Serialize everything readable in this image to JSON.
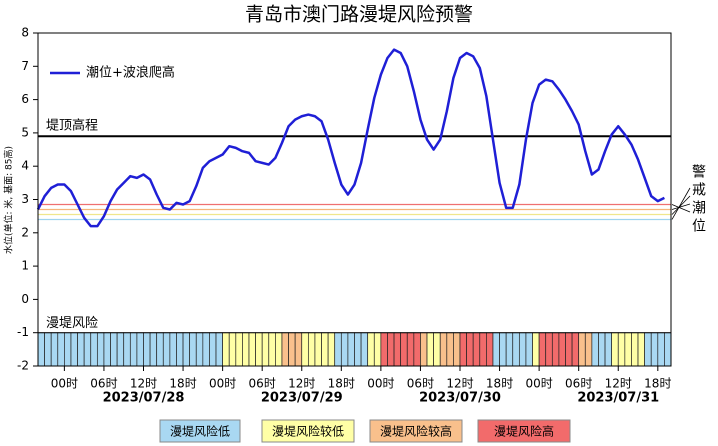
{
  "chart_data": {
    "type": "line",
    "title": "青岛市澳门路漫堤风险预警",
    "y_label": "水位(单位: 米, 基面: 85高)",
    "xlim": [
      -4,
      92
    ],
    "xticks": [
      {
        "value": 0,
        "label": "00时"
      },
      {
        "value": 6,
        "label": "06时"
      },
      {
        "value": 12,
        "label": "12时"
      },
      {
        "value": 18,
        "label": "18时"
      },
      {
        "value": 24,
        "label": "00时"
      },
      {
        "value": 30,
        "label": "06时"
      },
      {
        "value": 36,
        "label": "12时"
      },
      {
        "value": 42,
        "label": "18时"
      },
      {
        "value": 48,
        "label": "00时"
      },
      {
        "value": 54,
        "label": "06时"
      },
      {
        "value": 60,
        "label": "12时"
      },
      {
        "value": 66,
        "label": "18时"
      },
      {
        "value": 72,
        "label": "00时"
      },
      {
        "value": 78,
        "label": "06时"
      },
      {
        "value": 84,
        "label": "12时"
      },
      {
        "value": 90,
        "label": "18时"
      }
    ],
    "date_ticks": [
      {
        "value": 12,
        "label": "2023/07/28"
      },
      {
        "value": 36,
        "label": "2023/07/29"
      },
      {
        "value": 60,
        "label": "2023/07/30"
      },
      {
        "value": 84,
        "label": "2023/07/31"
      }
    ],
    "ylim": [
      -2,
      8
    ],
    "yticks": [
      -2,
      -1,
      0,
      1,
      2,
      3,
      4,
      5,
      6,
      7,
      8
    ],
    "x": [
      -4,
      -3,
      -2,
      -1,
      0,
      1,
      2,
      3,
      4,
      5,
      6,
      7,
      8,
      9,
      10,
      11,
      12,
      13,
      14,
      15,
      16,
      17,
      18,
      19,
      20,
      21,
      22,
      23,
      24,
      25,
      26,
      27,
      28,
      29,
      30,
      31,
      32,
      33,
      34,
      35,
      36,
      37,
      38,
      39,
      40,
      41,
      42,
      43,
      44,
      45,
      46,
      47,
      48,
      49,
      50,
      51,
      52,
      53,
      54,
      55,
      56,
      57,
      58,
      59,
      60,
      61,
      62,
      63,
      64,
      65,
      66,
      67,
      68,
      69,
      70,
      71,
      72,
      73,
      74,
      75,
      76,
      77,
      78,
      79,
      80,
      81,
      82,
      83,
      84,
      85,
      86,
      87,
      88,
      89,
      90,
      91
    ],
    "series": [
      {
        "name": "潮位+波浪爬高",
        "color": "#1f1fd6",
        "values": [
          2.7,
          3.1,
          3.35,
          3.45,
          3.45,
          3.25,
          2.85,
          2.45,
          2.2,
          2.2,
          2.5,
          2.95,
          3.3,
          3.5,
          3.7,
          3.65,
          3.75,
          3.6,
          3.15,
          2.75,
          2.7,
          2.9,
          2.85,
          2.95,
          3.4,
          3.95,
          4.15,
          4.25,
          4.35,
          4.6,
          4.55,
          4.45,
          4.4,
          4.15,
          4.1,
          4.05,
          4.25,
          4.7,
          5.2,
          5.4,
          5.5,
          5.55,
          5.5,
          5.35,
          4.8,
          4.1,
          3.45,
          3.15,
          3.45,
          4.1,
          5.1,
          6.05,
          6.75,
          7.25,
          7.5,
          7.4,
          7.0,
          6.25,
          5.4,
          4.8,
          4.5,
          4.8,
          5.65,
          6.65,
          7.25,
          7.4,
          7.3,
          6.95,
          6.1,
          4.8,
          3.5,
          2.75,
          2.75,
          3.45,
          4.8,
          5.9,
          6.45,
          6.6,
          6.55,
          6.3,
          6.0,
          5.65,
          5.25,
          4.45,
          3.75,
          3.9,
          4.45,
          4.95,
          5.2,
          4.95,
          4.65,
          4.2,
          3.65,
          3.1,
          2.95,
          3.05
        ]
      }
    ],
    "dike": {
      "label": "堤顶高程",
      "value": 4.9,
      "color": "#000000"
    },
    "warning": {
      "label": "警戒潮位",
      "levels": [
        2.4,
        2.55,
        2.7,
        2.85
      ],
      "colors": [
        "#9fd3ee",
        "#f0e68c",
        "#f5b57a",
        "#ef7070"
      ]
    },
    "risk": {
      "label": "漫堤风险",
      "band": [
        -2,
        -1
      ],
      "levels": [
        0,
        0,
        0,
        0,
        0,
        0,
        0,
        0,
        0,
        0,
        0,
        0,
        0,
        0,
        0,
        0,
        0,
        0,
        0,
        0,
        0,
        0,
        0,
        0,
        0,
        0,
        0,
        0,
        1,
        1,
        1,
        1,
        1,
        1,
        1,
        1,
        1,
        2,
        2,
        2,
        1,
        1,
        1,
        1,
        1,
        0,
        0,
        0,
        0,
        0,
        1,
        1,
        3,
        3,
        3,
        3,
        3,
        3,
        2,
        1,
        1,
        2,
        2,
        2,
        3,
        3,
        3,
        3,
        3,
        0,
        0,
        0,
        0,
        0,
        0,
        1,
        3,
        3,
        3,
        3,
        3,
        3,
        2,
        2,
        0,
        0,
        0,
        1,
        1,
        1,
        1,
        1,
        0,
        0,
        0,
        0
      ],
      "legend": [
        {
          "name": "漫堤风险低",
          "color": "#a9d8f2"
        },
        {
          "name": "漫堤风险较低",
          "color": "#ffffa6"
        },
        {
          "name": "漫堤风险较高",
          "color": "#f9c08c"
        },
        {
          "name": "漫堤风险高",
          "color": "#f26b6b"
        }
      ]
    }
  }
}
